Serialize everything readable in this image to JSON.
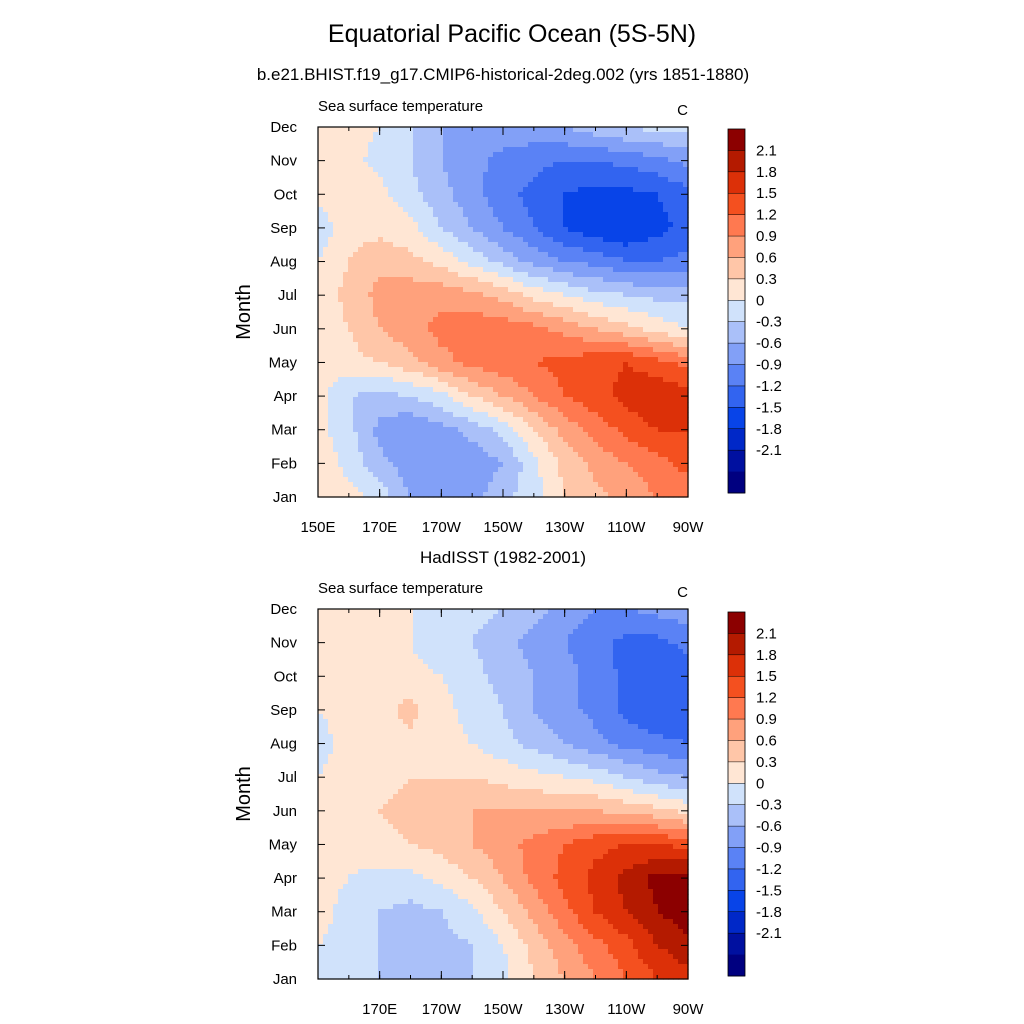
{
  "page": {
    "title": "Equatorial Pacific Ocean (5S-5N)"
  },
  "chart_data": [
    {
      "type": "heatmap",
      "subtitle": "b.e21.BHIST.f19_g17.CMIP6-historical-2deg.002 (yrs 1851-1880)",
      "left_label": "Sea surface temperature",
      "units": "C",
      "ylabel": "Month",
      "y_ticks": [
        "Jan",
        "Feb",
        "Mar",
        "Apr",
        "May",
        "Jun",
        "Jul",
        "Aug",
        "Sep",
        "Oct",
        "Nov",
        "Dec"
      ],
      "x_ticks": [
        "150E",
        "170E",
        "170W",
        "150W",
        "130W",
        "110W",
        "90W"
      ],
      "xlim": [
        150,
        270
      ],
      "colorbar": {
        "levels": [
          "2.1",
          "1.8",
          "1.5",
          "1.2",
          "0.9",
          "0.6",
          "0.3",
          "0",
          "-0.3",
          "-0.6",
          "-0.9",
          "-1.2",
          "-1.5",
          "-1.8",
          "-2.1"
        ]
      },
      "field": {
        "lon": [
          150,
          160,
          170,
          180,
          190,
          200,
          210,
          220,
          230,
          240,
          250,
          260,
          270
        ],
        "values": [
          [
            0.2,
            0.1,
            -0.1,
            -0.6,
            -0.8,
            -0.7,
            -0.4,
            -0.1,
            0.3,
            0.5,
            0.7,
            0.9,
            1.0
          ],
          [
            0.2,
            -0.1,
            -0.5,
            -0.8,
            -0.9,
            -0.8,
            -0.6,
            -0.1,
            0.4,
            0.7,
            0.9,
            1.1,
            1.3
          ],
          [
            0.1,
            -0.2,
            -0.7,
            -0.9,
            -0.7,
            -0.5,
            -0.2,
            0.3,
            0.7,
            1.0,
            1.3,
            1.5,
            1.5
          ],
          [
            0.1,
            -0.3,
            -0.4,
            -0.3,
            -0.1,
            0.3,
            0.6,
            0.9,
            1.2,
            1.4,
            1.6,
            1.8,
            1.6
          ],
          [
            0.1,
            0.2,
            0.3,
            0.5,
            0.8,
            1.0,
            1.1,
            1.2,
            1.3,
            1.4,
            1.5,
            1.3,
            1.1
          ],
          [
            0.1,
            0.3,
            0.6,
            0.8,
            1.0,
            1.1,
            1.1,
            1.0,
            0.8,
            0.6,
            0.4,
            0.2,
            0.0
          ],
          [
            0.1,
            0.4,
            0.7,
            0.8,
            0.8,
            0.7,
            0.5,
            0.2,
            0.0,
            -0.2,
            -0.3,
            -0.4,
            -0.4
          ],
          [
            0.0,
            0.3,
            0.5,
            0.4,
            0.2,
            -0.1,
            -0.4,
            -0.7,
            -0.9,
            -1.0,
            -1.2,
            -1.2,
            -1.1
          ],
          [
            -0.2,
            0.2,
            0.2,
            0.1,
            -0.3,
            -0.6,
            -0.9,
            -1.2,
            -1.5,
            -1.7,
            -1.8,
            -1.6,
            -1.4
          ],
          [
            0.1,
            0.2,
            0.1,
            -0.2,
            -0.5,
            -0.8,
            -1.1,
            -1.3,
            -1.5,
            -1.6,
            -1.6,
            -1.5,
            -1.3
          ],
          [
            0.2,
            0.1,
            -0.1,
            -0.3,
            -0.6,
            -0.8,
            -1.0,
            -1.1,
            -1.2,
            -1.2,
            -1.1,
            -1.0,
            -0.8
          ],
          [
            0.2,
            0.1,
            0.0,
            -0.3,
            -0.6,
            -0.7,
            -0.7,
            -0.7,
            -0.6,
            -0.4,
            -0.3,
            -0.2,
            -0.2
          ]
        ]
      }
    },
    {
      "type": "heatmap",
      "subtitle": "HadISST (1982-2001)",
      "left_label": "Sea surface temperature",
      "units": "C",
      "ylabel": "Month",
      "y_ticks": [
        "Jan",
        "Feb",
        "Mar",
        "Apr",
        "May",
        "Jun",
        "Jul",
        "Aug",
        "Sep",
        "Oct",
        "Nov",
        "Dec"
      ],
      "x_ticks": [
        "170E",
        "170W",
        "150W",
        "130W",
        "110W",
        "90W"
      ],
      "xlim": [
        150,
        270
      ],
      "colorbar": {
        "levels": [
          "2.1",
          "1.8",
          "1.5",
          "1.2",
          "0.9",
          "0.6",
          "0.3",
          "0",
          "-0.3",
          "-0.6",
          "-0.9",
          "-1.2",
          "-1.5",
          "-1.8",
          "-2.1"
        ]
      },
      "field": {
        "lon": [
          150,
          160,
          170,
          180,
          190,
          200,
          210,
          220,
          230,
          240,
          250,
          260,
          270
        ],
        "values": [
          [
            0.0,
            -0.1,
            -0.3,
            -0.4,
            -0.4,
            -0.3,
            -0.1,
            0.3,
            0.6,
            0.9,
            1.2,
            1.5,
            1.7
          ],
          [
            0.0,
            -0.1,
            -0.3,
            -0.4,
            -0.4,
            -0.3,
            0.0,
            0.4,
            0.8,
            1.1,
            1.4,
            1.8,
            2.0
          ],
          [
            0.1,
            -0.1,
            -0.3,
            -0.4,
            -0.3,
            -0.1,
            0.3,
            0.7,
            1.1,
            1.5,
            1.8,
            2.1,
            2.3
          ],
          [
            0.1,
            0.0,
            -0.1,
            -0.1,
            0.1,
            0.3,
            0.6,
            1.0,
            1.3,
            1.6,
            1.9,
            2.2,
            2.2
          ],
          [
            0.1,
            0.1,
            0.2,
            0.3,
            0.4,
            0.6,
            0.8,
            1.0,
            1.2,
            1.4,
            1.5,
            1.5,
            1.4
          ],
          [
            0.1,
            0.2,
            0.3,
            0.4,
            0.5,
            0.6,
            0.6,
            0.6,
            0.6,
            0.6,
            0.5,
            0.4,
            0.2
          ],
          [
            0.0,
            0.1,
            0.2,
            0.3,
            0.3,
            0.3,
            0.2,
            0.1,
            0.0,
            -0.1,
            -0.3,
            -0.5,
            -0.6
          ],
          [
            -0.1,
            0.1,
            0.1,
            0.2,
            0.1,
            0.0,
            -0.2,
            -0.4,
            -0.6,
            -0.8,
            -1.0,
            -1.1,
            -1.2
          ],
          [
            0.0,
            0.1,
            0.2,
            0.4,
            0.1,
            -0.1,
            -0.3,
            -0.6,
            -0.8,
            -1.0,
            -1.3,
            -1.5,
            -1.5
          ],
          [
            0.0,
            0.1,
            0.1,
            0.1,
            0.0,
            -0.2,
            -0.4,
            -0.6,
            -0.8,
            -1.0,
            -1.3,
            -1.5,
            -1.4
          ],
          [
            0.1,
            0.1,
            0.0,
            0.0,
            -0.2,
            -0.3,
            -0.5,
            -0.7,
            -0.9,
            -1.1,
            -1.3,
            -1.3,
            -1.1
          ],
          [
            0.1,
            0.1,
            0.0,
            0.0,
            -0.1,
            -0.2,
            -0.3,
            -0.5,
            -0.7,
            -0.9,
            -0.9,
            -0.8,
            -0.7
          ]
        ]
      }
    }
  ],
  "palette": [
    "#000080",
    "#0010A0",
    "#0028C8",
    "#0844E8",
    "#3264F0",
    "#5A82F5",
    "#82A0F7",
    "#AAC0F9",
    "#D0E2FB",
    "#FFE6D4",
    "#FFC6A8",
    "#FFA17C",
    "#FF7950",
    "#F4501F",
    "#DC3008",
    "#B41A00",
    "#8C0000"
  ]
}
